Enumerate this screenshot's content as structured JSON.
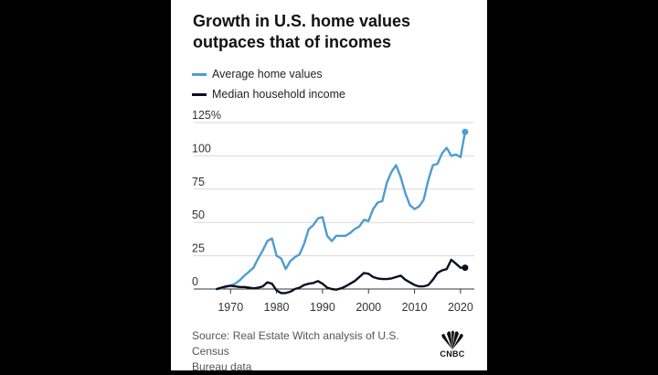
{
  "chart_data": {
    "type": "line",
    "title": "Growth in U.S. home values outpaces that of incomes",
    "ylabel": "",
    "xlabel": "",
    "ylim": [
      0,
      125
    ],
    "xlim": [
      1962,
      2023
    ],
    "y_ticks": [
      0,
      25,
      50,
      75,
      100,
      125
    ],
    "y_tick_labels": [
      "0",
      "25",
      "50",
      "75",
      "100",
      "125%"
    ],
    "x_ticks": [
      1970,
      1980,
      1990,
      2000,
      2010,
      2020
    ],
    "x_tick_labels": [
      "1970",
      "1980",
      "1990",
      "2000",
      "2010",
      "2020"
    ],
    "legend_position": "top-left",
    "series": [
      {
        "name": "Average home values",
        "color": "#4e9cd0",
        "x": [
          1967,
          1968,
          1969,
          1970,
          1971,
          1972,
          1973,
          1974,
          1975,
          1976,
          1977,
          1978,
          1979,
          1980,
          1981,
          1982,
          1983,
          1984,
          1985,
          1986,
          1987,
          1988,
          1989,
          1990,
          1991,
          1992,
          1993,
          1994,
          1995,
          1996,
          1997,
          1998,
          1999,
          2000,
          2001,
          2002,
          2003,
          2004,
          2005,
          2006,
          2007,
          2008,
          2009,
          2010,
          2011,
          2012,
          2013,
          2014,
          2015,
          2016,
          2017,
          2018,
          2019,
          2020,
          2021
        ],
        "values": [
          0,
          0.5,
          1.5,
          2.5,
          4,
          6.5,
          10,
          13,
          16,
          23,
          29,
          36,
          38,
          25,
          23,
          15,
          21,
          24,
          26,
          34,
          45,
          48,
          53,
          54,
          40,
          36,
          40,
          40,
          40,
          42,
          45,
          47,
          52,
          51,
          60,
          65,
          66,
          80,
          88,
          93,
          84,
          72,
          63,
          60,
          62,
          67,
          82,
          93,
          94,
          102,
          106,
          100,
          101,
          99,
          118
        ]
      },
      {
        "name": "Median household income",
        "color": "#0b0e24",
        "x": [
          1967,
          1968,
          1969,
          1970,
          1971,
          1972,
          1973,
          1974,
          1975,
          1976,
          1977,
          1978,
          1979,
          1980,
          1981,
          1982,
          1983,
          1984,
          1985,
          1986,
          1987,
          1988,
          1989,
          1990,
          1991,
          1992,
          1993,
          1994,
          1995,
          1996,
          1997,
          1998,
          1999,
          2000,
          2001,
          2002,
          2003,
          2004,
          2005,
          2006,
          2007,
          2008,
          2009,
          2010,
          2011,
          2012,
          2013,
          2014,
          2015,
          2016,
          2017,
          2018,
          2019,
          2020,
          2021
        ],
        "values": [
          0,
          1,
          2,
          2.5,
          2,
          1.5,
          1.5,
          1,
          0.5,
          1,
          2,
          5,
          4,
          -1,
          -3,
          -3,
          -2,
          0,
          1,
          3,
          4,
          4.5,
          6,
          4,
          1,
          0,
          -0.5,
          0.5,
          2,
          4,
          6,
          9,
          12,
          11.5,
          9,
          8,
          7.5,
          7.5,
          8,
          9,
          10,
          7,
          5,
          3,
          2,
          2,
          3,
          7,
          12,
          14,
          15,
          22,
          19,
          16,
          16
        ]
      }
    ]
  },
  "source": {
    "line1": "Source: Real Estate Witch analysis of U.S. Census",
    "line2": "Bureau data"
  },
  "logo": {
    "text": "CNBC"
  }
}
